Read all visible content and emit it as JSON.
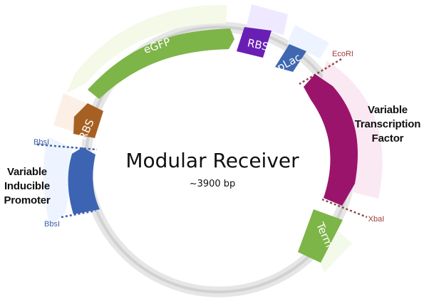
{
  "plasmid": {
    "title": "Modular Receiver",
    "size": "~3900 bp"
  },
  "features": {
    "rbs_top": "RBS",
    "plac": "pLac",
    "egfp": "eGFP",
    "rbs_left": "RBS",
    "term": "Term"
  },
  "labels": {
    "left_line_1": "Variable",
    "left_line_2": "Inducible",
    "left_line_3": "Promoter",
    "right_line_1": "Variable",
    "right_line_2": "Transcription",
    "right_line_3": "Factor"
  },
  "sites": {
    "bbs_top": "BbsI",
    "bbs_bottom": "BbsI",
    "ecori": "EcoRI",
    "xbai": "XbaI"
  }
}
